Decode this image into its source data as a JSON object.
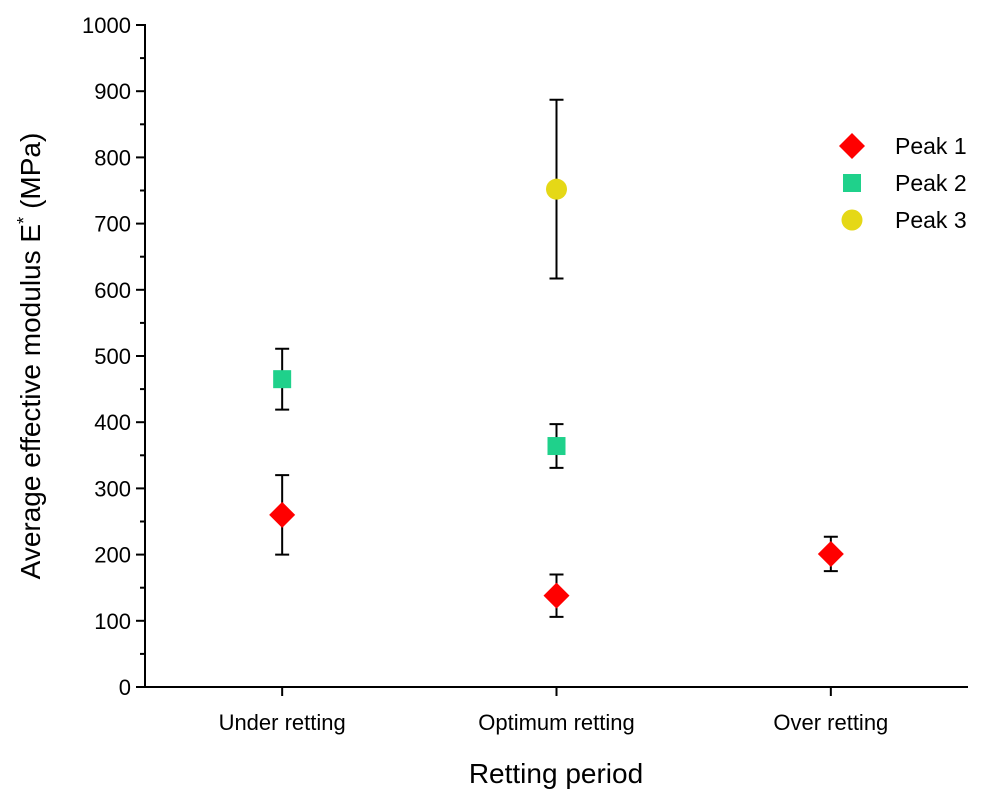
{
  "chart_data": {
    "type": "scatter",
    "y_label": {
      "text": "Average effective modulus E",
      "superscript": "*",
      "unit": "(MPa)"
    },
    "x_label": "Retting period",
    "categories": [
      "Under retting",
      "Optimum retting",
      "Over retting"
    ],
    "series": [
      {
        "name": "Peak 1",
        "color": "#ff0000",
        "marker": "diamond",
        "values": [
          260,
          138,
          201
        ],
        "errors": [
          60,
          32,
          26
        ]
      },
      {
        "name": "Peak 2",
        "color": "#1fd18b",
        "marker": "square",
        "values": [
          465,
          364,
          null
        ],
        "errors": [
          46,
          33,
          null
        ]
      },
      {
        "name": "Peak 3",
        "color": "#e5d816",
        "marker": "circle",
        "values": [
          null,
          752,
          null
        ],
        "errors": [
          null,
          135,
          null
        ]
      }
    ],
    "ylim": [
      0,
      1000
    ],
    "yticks": [
      0,
      100,
      200,
      300,
      400,
      500,
      600,
      700,
      800,
      900,
      1000
    ],
    "legend": "upper right"
  }
}
